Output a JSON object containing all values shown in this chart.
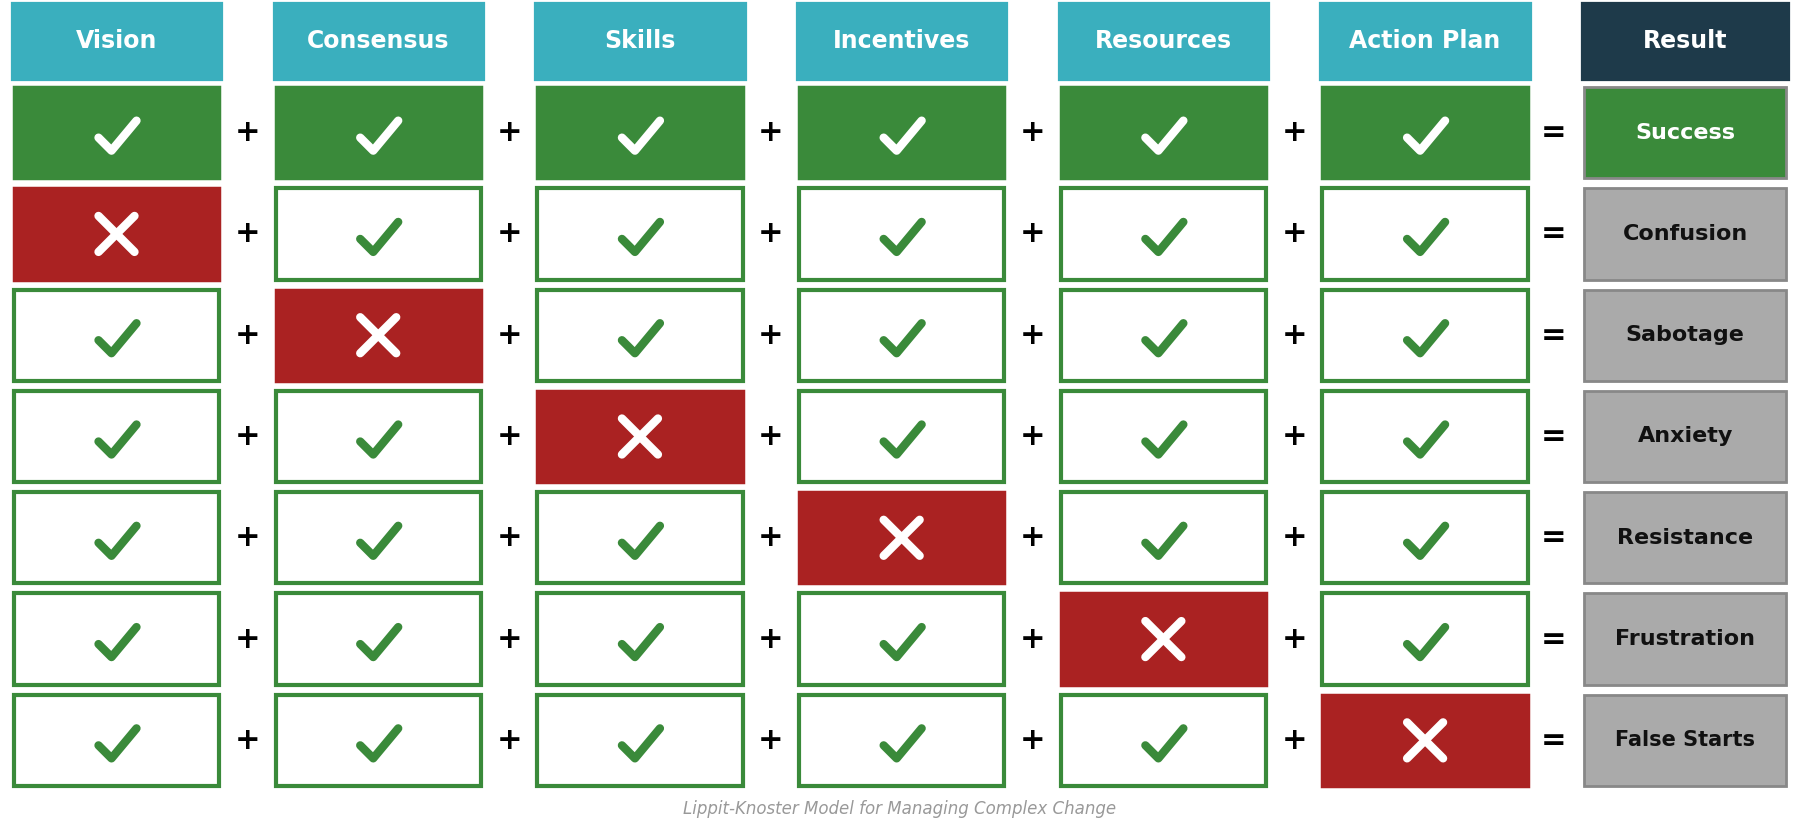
{
  "headers": [
    "Vision",
    "Consensus",
    "Skills",
    "Incentives",
    "Resources",
    "Action Plan",
    "Result"
  ],
  "header_bg_color": "#3aafbe",
  "header_result_bg_color": "#1e3a4a",
  "header_text_color": "#ffffff",
  "results": [
    "Success",
    "Confusion",
    "Sabotage",
    "Anxiety",
    "Resistance",
    "Frustration",
    "False Starts"
  ],
  "result_colors": [
    "#3a8a3a",
    "#aaaaaa",
    "#aaaaaa",
    "#aaaaaa",
    "#aaaaaa",
    "#aaaaaa",
    "#aaaaaa"
  ],
  "result_text_colors": [
    "#ffffff",
    "#111111",
    "#111111",
    "#111111",
    "#111111",
    "#111111",
    "#111111"
  ],
  "missing_col": [
    -1,
    0,
    1,
    2,
    3,
    4,
    5
  ],
  "green_check_bg": "#3a8a3a",
  "green_check_border": "#3a8a3a",
  "white_cell_border": "#3a8a3a",
  "red_x_bg": "#aa2222",
  "background_color": "#ffffff",
  "footer_text": "Lippit-Knoster Model for Managing Complex Change",
  "footer_color": "#999999",
  "fig_width": 18.0,
  "fig_height": 8.26,
  "dpi": 100
}
